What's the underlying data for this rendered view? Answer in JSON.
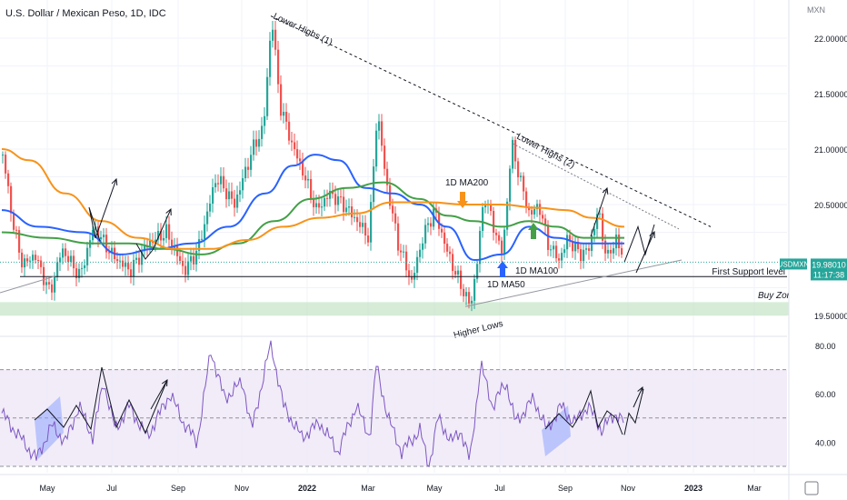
{
  "header": {
    "title": "U.S. Dollar / Mexican Peso, 1D, IDC"
  },
  "price_axis": {
    "currency": "MXN",
    "ticks": [
      "22.00000",
      "21.50000",
      "21.00000",
      "20.50000",
      "19.50000"
    ],
    "last_symbol": "USDMXN",
    "last_price": "19.98010",
    "countdown": "11:17:38"
  },
  "rsi_axis": {
    "ticks": [
      "80.00",
      "60.00",
      "40.00"
    ]
  },
  "time_axis": {
    "labels": [
      "May",
      "Jul",
      "Sep",
      "Nov",
      "2022",
      "Mar",
      "May",
      "Jul",
      "Sep",
      "Nov",
      "2023",
      "Mar"
    ]
  },
  "annotations": {
    "lower_highs_1": "Lower Highs (1)",
    "lower_highs_2": "Lower Highs (2)",
    "ma200": "1D MA200",
    "ma100": "1D MA100",
    "ma50": "1D MA50",
    "first_support": "First Support level",
    "buy_zone": "Buy Zone",
    "higher_lows": "Higher Lows"
  },
  "colors": {
    "up": "#26a69a",
    "down": "#ef5350",
    "ma50": "#2962ff",
    "ma100": "#43a047",
    "ma200": "#f7931a",
    "rsi": "#7e57c2",
    "buy_zone": "#c8e6c9",
    "rsi_band": "#ede7f6",
    "price_tag": "#26a69a"
  },
  "chart_data": [
    {
      "type": "candlestick",
      "title": "U.S. Dollar / Mexican Peso, 1D, IDC",
      "ylim": [
        19.38,
        22.3
      ],
      "y_ticks": [
        22.0,
        21.5,
        21.0,
        20.5,
        19.5
      ],
      "x_labels": [
        "May",
        "Jul",
        "Sep",
        "Nov",
        "2022",
        "Mar",
        "May",
        "Jul",
        "Sep",
        "Nov",
        "2023",
        "Mar"
      ],
      "series": [
        {
          "name": "USDMXN",
          "anchors": [
            [
              0,
              20.95
            ],
            [
              12,
              20.3
            ],
            [
              22,
              19.95
            ],
            [
              35,
              20.05
            ],
            [
              52,
              19.7
            ],
            [
              65,
              20.1
            ],
            [
              85,
              19.85
            ],
            [
              100,
              20.3
            ],
            [
              120,
              20.05
            ],
            [
              140,
              19.9
            ],
            [
              160,
              20.15
            ],
            [
              180,
              20.25
            ],
            [
              200,
              19.9
            ],
            [
              215,
              20.1
            ],
            [
              235,
              20.75
            ],
            [
              255,
              20.5
            ],
            [
              275,
              21.0
            ],
            [
              287,
              21.2
            ],
            [
              296,
              22.2
            ],
            [
              305,
              21.4
            ],
            [
              318,
              21.05
            ],
            [
              330,
              20.8
            ],
            [
              345,
              20.45
            ],
            [
              360,
              20.6
            ],
            [
              375,
              20.5
            ],
            [
              390,
              20.35
            ],
            [
              403,
              20.2
            ],
            [
              412,
              21.35
            ],
            [
              422,
              20.7
            ],
            [
              435,
              20.15
            ],
            [
              450,
              19.8
            ],
            [
              462,
              20.2
            ],
            [
              475,
              20.45
            ],
            [
              490,
              20.05
            ],
            [
              505,
              19.75
            ],
            [
              515,
              19.58
            ],
            [
              522,
              20.0
            ],
            [
              530,
              20.6
            ],
            [
              540,
              20.3
            ],
            [
              550,
              20.05
            ],
            [
              560,
              21.05
            ],
            [
              570,
              20.7
            ],
            [
              580,
              20.4
            ],
            [
              590,
              20.5
            ],
            [
              600,
              20.15
            ],
            [
              612,
              20.0
            ],
            [
              622,
              20.2
            ],
            [
              635,
              20.05
            ],
            [
              645,
              20.1
            ],
            [
              655,
              20.45
            ],
            [
              665,
              20.0
            ],
            [
              675,
              20.2
            ],
            [
              683,
              19.98
            ]
          ],
          "last": 19.9801
        },
        {
          "name": "1D MA50",
          "values": [
            [
              0,
              20.45
            ],
            [
              40,
              20.3
            ],
            [
              90,
              20.25
            ],
            [
              130,
              20.05
            ],
            [
              170,
              20.1
            ],
            [
              210,
              20.15
            ],
            [
              250,
              20.3
            ],
            [
              290,
              20.6
            ],
            [
              320,
              20.85
            ],
            [
              345,
              20.95
            ],
            [
              370,
              20.9
            ],
            [
              400,
              20.65
            ],
            [
              430,
              20.6
            ],
            [
              460,
              20.5
            ],
            [
              490,
              20.3
            ],
            [
              520,
              20.0
            ],
            [
              550,
              20.05
            ],
            [
              580,
              20.3
            ],
            [
              610,
              20.2
            ],
            [
              640,
              20.15
            ],
            [
              670,
              20.15
            ],
            [
              685,
              20.15
            ]
          ]
        },
        {
          "name": "1D MA100",
          "values": [
            [
              0,
              20.25
            ],
            [
              50,
              20.2
            ],
            [
              100,
              20.15
            ],
            [
              140,
              20.15
            ],
            [
              180,
              20.1
            ],
            [
              220,
              20.05
            ],
            [
              260,
              20.15
            ],
            [
              300,
              20.35
            ],
            [
              340,
              20.55
            ],
            [
              380,
              20.65
            ],
            [
              420,
              20.7
            ],
            [
              460,
              20.55
            ],
            [
              490,
              20.4
            ],
            [
              520,
              20.35
            ],
            [
              550,
              20.3
            ],
            [
              580,
              20.35
            ],
            [
              610,
              20.3
            ],
            [
              640,
              20.2
            ],
            [
              670,
              20.2
            ],
            [
              685,
              20.2
            ]
          ]
        },
        {
          "name": "1D MA200",
          "values": [
            [
              0,
              21.0
            ],
            [
              30,
              20.9
            ],
            [
              70,
              20.6
            ],
            [
              110,
              20.35
            ],
            [
              150,
              20.2
            ],
            [
              190,
              20.1
            ],
            [
              230,
              20.1
            ],
            [
              270,
              20.18
            ],
            [
              310,
              20.3
            ],
            [
              350,
              20.38
            ],
            [
              390,
              20.42
            ],
            [
              430,
              20.52
            ],
            [
              470,
              20.52
            ],
            [
              510,
              20.5
            ],
            [
              550,
              20.5
            ],
            [
              590,
              20.47
            ],
            [
              620,
              20.45
            ],
            [
              650,
              20.38
            ],
            [
              685,
              20.3
            ]
          ]
        },
        {
          "name": "Projection",
          "values": [
            [
              685,
              19.98
            ],
            [
              700,
              20.3
            ],
            [
              708,
              20.05
            ],
            [
              718,
              20.32
            ]
          ]
        }
      ],
      "trend_lines": [
        {
          "name": "Lower Highs (1)",
          "from": [
            296,
            22.2
          ],
          "to": [
            780,
            20.3
          ]
        },
        {
          "name": "Lower Highs (2)",
          "from": [
            562,
            21.05
          ],
          "to": [
            745,
            20.28
          ]
        },
        {
          "name": "Higher Lows",
          "from": [
            510,
            19.58
          ],
          "to": [
            748,
            20.0
          ]
        },
        {
          "name": "First Support level",
          "value": 19.85
        }
      ],
      "zones": [
        {
          "name": "Buy Zone",
          "y0": 19.5,
          "y1": 19.62
        }
      ]
    },
    {
      "type": "line",
      "title": "RSI",
      "ylim": [
        30,
        83
      ],
      "y_ticks": [
        80,
        60,
        40
      ],
      "band": [
        30,
        70
      ],
      "midline": 50,
      "series": [
        {
          "name": "RSI",
          "anchors": [
            [
              0,
              52
            ],
            [
              20,
              42
            ],
            [
              38,
              33
            ],
            [
              55,
              47
            ],
            [
              70,
              40
            ],
            [
              85,
              55
            ],
            [
              100,
              42
            ],
            [
              112,
              65
            ],
            [
              125,
              45
            ],
            [
              140,
              55
            ],
            [
              160,
              42
            ],
            [
              185,
              60
            ],
            [
              200,
              48
            ],
            [
              215,
              40
            ],
            [
              230,
              78
            ],
            [
              245,
              58
            ],
            [
              265,
              65
            ],
            [
              275,
              45
            ],
            [
              296,
              81
            ],
            [
              310,
              55
            ],
            [
              330,
              42
            ],
            [
              350,
              48
            ],
            [
              370,
              36
            ],
            [
              390,
              55
            ],
            [
              405,
              42
            ],
            [
              412,
              72
            ],
            [
              425,
              50
            ],
            [
              440,
              36
            ],
            [
              460,
              45
            ],
            [
              470,
              30
            ],
            [
              480,
              50
            ],
            [
              495,
              40
            ],
            [
              505,
              45
            ],
            [
              515,
              32
            ],
            [
              527,
              72
            ],
            [
              540,
              55
            ],
            [
              555,
              65
            ],
            [
              565,
              48
            ],
            [
              585,
              58
            ],
            [
              600,
              45
            ],
            [
              615,
              55
            ],
            [
              630,
              48
            ],
            [
              645,
              55
            ],
            [
              660,
              45
            ],
            [
              675,
              52
            ],
            [
              685,
              48
            ]
          ]
        },
        {
          "name": "Projection",
          "values": [
            [
              685,
              43
            ],
            [
              690,
              52
            ],
            [
              697,
              48
            ],
            [
              706,
              62
            ]
          ]
        }
      ]
    }
  ]
}
